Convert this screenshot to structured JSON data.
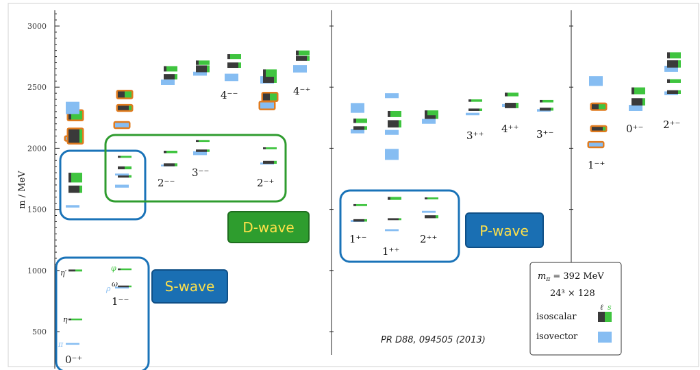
{
  "chart_data": {
    "type": "spectrum",
    "ylabel": "m / MeV",
    "yticks": [
      500,
      1000,
      1500,
      2000,
      2500,
      3000
    ],
    "ylim": [
      330,
      3130
    ],
    "colors": {
      "isoscalar_light": "#3a3a3a",
      "isoscalar_strange": "#3fc43f",
      "isovector": "#86bdf2",
      "exotic_outline": "#e07b1f",
      "s_wave": "#1a73b8",
      "d_wave": "#2f9c2f",
      "p_wave": "#1a73b8"
    },
    "jpc_labels": [
      {
        "text": "0⁻⁺",
        "anchor_mass": 400
      },
      {
        "text": "1⁻⁻",
        "anchor_mass": 860
      },
      {
        "text": "2⁻⁻",
        "anchor_mass": 1830
      },
      {
        "text": "3⁻⁻",
        "anchor_mass": 1880
      },
      {
        "text": "2⁻⁺",
        "anchor_mass": 1820
      },
      {
        "text": "4⁻⁻",
        "anchor_mass": 2440
      },
      {
        "text": "4⁻⁺",
        "anchor_mass": 2440
      },
      {
        "text": "1⁺⁻",
        "anchor_mass": 1320
      },
      {
        "text": "1⁺⁺",
        "anchor_mass": 1250
      },
      {
        "text": "2⁺⁺",
        "anchor_mass": 1320
      },
      {
        "text": "3⁺⁺",
        "anchor_mass": 2090
      },
      {
        "text": "4⁺⁺",
        "anchor_mass": 2110
      },
      {
        "text": "3⁺⁻",
        "anchor_mass": 2090
      },
      {
        "text": "1⁻⁺",
        "anchor_mass": 1910
      },
      {
        "text": "0⁺⁻",
        "anchor_mass": 2130
      },
      {
        "text": "2⁺⁻",
        "anchor_mass": 2160
      }
    ],
    "meson_labels": [
      {
        "text": "η′",
        "mass": 1000
      },
      {
        "text": "φ",
        "mass": 1010
      },
      {
        "text": "ω",
        "mass": 880
      },
      {
        "text": "ρ",
        "mass": 860
      },
      {
        "text": "η",
        "mass": 600
      },
      {
        "text": "π",
        "mass": 400
      }
    ],
    "states": [
      {
        "col": 0,
        "mass": 400,
        "kind": "isovector",
        "err": 0
      },
      {
        "col": 0,
        "mass": 600,
        "kind": "strange",
        "err": 0
      },
      {
        "col": 0,
        "mass": 1000,
        "kind": "mixed",
        "err": 8
      },
      {
        "col": 0,
        "mass": 1525,
        "kind": "isovector",
        "err": 10
      },
      {
        "col": 0,
        "mass": 1665,
        "kind": "light",
        "err": 30
      },
      {
        "col": 0,
        "mass": 1760,
        "kind": "strange",
        "err": 40
      },
      {
        "col": 0,
        "mass": 2080,
        "kind": "isovector",
        "err": 12,
        "exotic": true
      },
      {
        "col": 0,
        "mass": 2100,
        "kind": "light",
        "err": 55,
        "exotic": true
      },
      {
        "col": 0,
        "mass": 2270,
        "kind": "strange",
        "err": 35,
        "exotic": true
      },
      {
        "col": 0,
        "mass": 2330,
        "kind": "isovector",
        "err": 50
      },
      {
        "col": 1,
        "mass": 860,
        "kind": "isovector",
        "err": 0
      },
      {
        "col": 1,
        "mass": 870,
        "kind": "light",
        "err": 0
      },
      {
        "col": 1,
        "mass": 1010,
        "kind": "strange",
        "err": 0
      },
      {
        "col": 1,
        "mass": 1690,
        "kind": "isovector",
        "err": 12
      },
      {
        "col": 1,
        "mass": 1770,
        "kind": "light",
        "err": 10
      },
      {
        "col": 1,
        "mass": 1785,
        "kind": "isovector",
        "err": 8
      },
      {
        "col": 1,
        "mass": 1840,
        "kind": "mixed",
        "err": 12
      },
      {
        "col": 1,
        "mass": 1930,
        "kind": "strange",
        "err": 8
      },
      {
        "col": 1,
        "mass": 2190,
        "kind": "isovector",
        "err": 18,
        "exotic": true
      },
      {
        "col": 1,
        "mass": 2330,
        "kind": "light",
        "err": 18,
        "exotic": true
      },
      {
        "col": 1,
        "mass": 2440,
        "kind": "mixed",
        "err": 25,
        "exotic": true
      },
      {
        "col": 2,
        "mass": 1860,
        "kind": "isovector",
        "err": 6
      },
      {
        "col": 2,
        "mass": 1865,
        "kind": "light",
        "err": 12
      },
      {
        "col": 2,
        "mass": 1970,
        "kind": "strange",
        "err": 10
      },
      {
        "col": 2,
        "mass": 2540,
        "kind": "isovector",
        "err": 22
      },
      {
        "col": 2,
        "mass": 2585,
        "kind": "light",
        "err": 22
      },
      {
        "col": 2,
        "mass": 2650,
        "kind": "strange",
        "err": 22
      },
      {
        "col": 3,
        "mass": 1960,
        "kind": "isovector",
        "err": 16
      },
      {
        "col": 3,
        "mass": 1980,
        "kind": "light",
        "err": 10
      },
      {
        "col": 3,
        "mass": 2060,
        "kind": "strange",
        "err": 8
      },
      {
        "col": 3,
        "mass": 2610,
        "kind": "isovector",
        "err": 16
      },
      {
        "col": 3,
        "mass": 2650,
        "kind": "light",
        "err": 28
      },
      {
        "col": 3,
        "mass": 2700,
        "kind": "strange",
        "err": 18
      },
      {
        "col": 4,
        "mass": 2580,
        "kind": "isovector",
        "err": 30
      },
      {
        "col": 4,
        "mass": 2680,
        "kind": "light",
        "err": 22
      },
      {
        "col": 4,
        "mass": 2750,
        "kind": "strange",
        "err": 20
      },
      {
        "col": 5,
        "mass": 1875,
        "kind": "isovector",
        "err": 8
      },
      {
        "col": 5,
        "mass": 1885,
        "kind": "light",
        "err": 12
      },
      {
        "col": 5,
        "mass": 2000,
        "kind": "strange",
        "err": 8
      },
      {
        "col": 5,
        "mass": 2350,
        "kind": "isovector",
        "err": 25,
        "exotic": true
      },
      {
        "col": 5,
        "mass": 2420,
        "kind": "mixed",
        "err": 28,
        "exotic": true
      },
      {
        "col": 5,
        "mass": 2560,
        "kind": "isovector",
        "err": 30
      },
      {
        "col": 5,
        "mass": 2570,
        "kind": "light",
        "err": 35
      },
      {
        "col": 5,
        "mass": 2615,
        "kind": "strange",
        "err": 30
      },
      {
        "col": 6,
        "mass": 2650,
        "kind": "isovector",
        "err": 30
      },
      {
        "col": 6,
        "mass": 2735,
        "kind": "light",
        "err": 20
      },
      {
        "col": 6,
        "mass": 2780,
        "kind": "strange",
        "err": 20
      },
      {
        "col": 7,
        "mass": 1405,
        "kind": "isovector",
        "err": 8
      },
      {
        "col": 7,
        "mass": 1410,
        "kind": "light",
        "err": 10
      },
      {
        "col": 7,
        "mass": 1535,
        "kind": "strange",
        "err": 8
      },
      {
        "col": 7,
        "mass": 2140,
        "kind": "isovector",
        "err": 18
      },
      {
        "col": 7,
        "mass": 2165,
        "kind": "light",
        "err": 15
      },
      {
        "col": 7,
        "mass": 2225,
        "kind": "strange",
        "err": 18
      },
      {
        "col": 7,
        "mass": 2330,
        "kind": "isovector",
        "err": 40
      },
      {
        "col": 8,
        "mass": 1330,
        "kind": "isovector",
        "err": 8
      },
      {
        "col": 8,
        "mass": 1420,
        "kind": "light",
        "err": 8
      },
      {
        "col": 8,
        "mass": 1590,
        "kind": "strange",
        "err": 12
      },
      {
        "col": 8,
        "mass": 1950,
        "kind": "isovector",
        "err": 45
      },
      {
        "col": 8,
        "mass": 2130,
        "kind": "isovector",
        "err": 20
      },
      {
        "col": 8,
        "mass": 2200,
        "kind": "light",
        "err": 30
      },
      {
        "col": 8,
        "mass": 2280,
        "kind": "strange",
        "err": 25
      },
      {
        "col": 8,
        "mass": 2430,
        "kind": "isovector",
        "err": 20
      },
      {
        "col": 9,
        "mass": 1480,
        "kind": "isovector",
        "err": 8
      },
      {
        "col": 9,
        "mass": 1440,
        "kind": "light",
        "err": 12
      },
      {
        "col": 9,
        "mass": 1590,
        "kind": "strange",
        "err": 8
      },
      {
        "col": 9,
        "mass": 2220,
        "kind": "isovector",
        "err": 20
      },
      {
        "col": 9,
        "mass": 2270,
        "kind": "light",
        "err": 30
      },
      {
        "col": 9,
        "mass": 2290,
        "kind": "strange",
        "err": 20
      },
      {
        "col": 10,
        "mass": 2280,
        "kind": "isovector",
        "err": 10
      },
      {
        "col": 10,
        "mass": 2315,
        "kind": "light",
        "err": 10
      },
      {
        "col": 10,
        "mass": 2390,
        "kind": "strange",
        "err": 10
      },
      {
        "col": 11,
        "mass": 2350,
        "kind": "isovector",
        "err": 12
      },
      {
        "col": 11,
        "mass": 2350,
        "kind": "light",
        "err": 22
      },
      {
        "col": 11,
        "mass": 2440,
        "kind": "strange",
        "err": 15
      },
      {
        "col": 12,
        "mass": 2310,
        "kind": "isovector",
        "err": 10
      },
      {
        "col": 12,
        "mass": 2320,
        "kind": "light",
        "err": 12
      },
      {
        "col": 12,
        "mass": 2385,
        "kind": "strange",
        "err": 10
      },
      {
        "col": 13,
        "mass": 2030,
        "kind": "isovector",
        "err": 15,
        "exotic": true
      },
      {
        "col": 13,
        "mass": 2160,
        "kind": "light",
        "err": 15,
        "exotic": true
      },
      {
        "col": 13,
        "mass": 2340,
        "kind": "mixed",
        "err": 20,
        "exotic": true
      },
      {
        "col": 13,
        "mass": 2550,
        "kind": "isovector",
        "err": 40
      },
      {
        "col": 14,
        "mass": 2330,
        "kind": "isovector",
        "err": 25
      },
      {
        "col": 14,
        "mass": 2380,
        "kind": "light",
        "err": 30
      },
      {
        "col": 14,
        "mass": 2470,
        "kind": "strange",
        "err": 28
      },
      {
        "col": 15,
        "mass": 2450,
        "kind": "isovector",
        "err": 15
      },
      {
        "col": 15,
        "mass": 2460,
        "kind": "light",
        "err": 15
      },
      {
        "col": 15,
        "mass": 2550,
        "kind": "strange",
        "err": 15
      },
      {
        "col": 15,
        "mass": 2650,
        "kind": "isovector",
        "err": 25
      },
      {
        "col": 15,
        "mass": 2690,
        "kind": "light",
        "err": 30
      },
      {
        "col": 15,
        "mass": 2760,
        "kind": "strange",
        "err": 25
      }
    ]
  },
  "annotations": {
    "s_wave": "S-wave",
    "d_wave": "D-wave",
    "p_wave": "P-wave",
    "citation": "PR D88, 094505 (2013)"
  },
  "legend": {
    "mass_line": "m",
    "mass_sub": "π",
    "mass_value": " = 392 MeV",
    "volume": "24³ × 128",
    "ell": "ℓ",
    "s": "s",
    "isoscalar": "isoscalar",
    "isovector": "isovector"
  }
}
